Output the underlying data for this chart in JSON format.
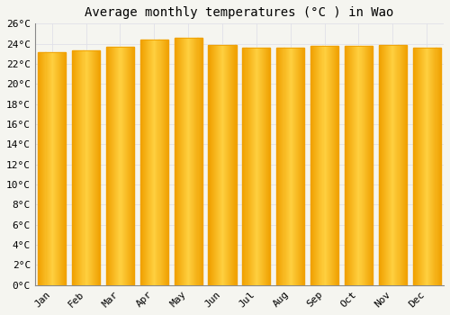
{
  "title": "Average monthly temperatures (°C ) in Wao",
  "months": [
    "Jan",
    "Feb",
    "Mar",
    "Apr",
    "May",
    "Jun",
    "Jul",
    "Aug",
    "Sep",
    "Oct",
    "Nov",
    "Dec"
  ],
  "values": [
    23.2,
    23.3,
    23.7,
    24.4,
    24.6,
    23.9,
    23.6,
    23.6,
    23.8,
    23.8,
    23.9,
    23.6
  ],
  "bar_color_center": "#FFD040",
  "bar_color_edge": "#F0A000",
  "ylim": [
    0,
    26
  ],
  "ytick_step": 2,
  "background_color": "#F5F5F0",
  "grid_color": "#E0E0E8",
  "title_fontsize": 10,
  "tick_fontsize": 8,
  "bar_width": 0.82
}
